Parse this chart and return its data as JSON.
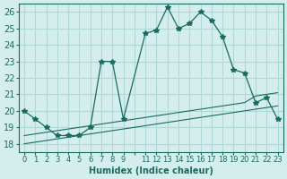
{
  "xlabel": "Humidex (Indice chaleur)",
  "bg_color": "#d4eeed",
  "grid_color": "#b0d8d5",
  "line_color": "#1a6b5e",
  "xlim": [
    -0.5,
    23.5
  ],
  "ylim": [
    17.5,
    26.5
  ],
  "yticks": [
    18,
    19,
    20,
    21,
    22,
    23,
    24,
    25,
    26
  ],
  "xtick_labels": [
    "0",
    "1",
    "2",
    "3",
    "4",
    "5",
    "6",
    "7",
    "8",
    "9",
    "",
    "11",
    "12",
    "13",
    "14",
    "15",
    "16",
    "17",
    "18",
    "19",
    "20",
    "21",
    "22",
    "23"
  ],
  "main_x": [
    0,
    1,
    2,
    3,
    4,
    5,
    6,
    7,
    8,
    9,
    11,
    12,
    13,
    14,
    15,
    16,
    17,
    18,
    19,
    20,
    21,
    22,
    23
  ],
  "main_y": [
    20.0,
    19.5,
    19.0,
    18.5,
    18.5,
    18.5,
    19.0,
    23.0,
    23.0,
    19.5,
    24.7,
    24.9,
    26.3,
    25.0,
    25.3,
    26.0,
    25.5,
    24.5,
    22.5,
    22.3,
    20.5,
    20.8,
    19.5
  ],
  "line1_x": [
    0,
    1,
    2,
    3,
    4,
    5,
    6,
    7,
    8,
    9,
    11,
    12,
    13,
    14,
    15,
    16,
    17,
    18,
    19,
    20,
    21,
    22,
    23
  ],
  "line1_y": [
    18.0,
    18.1,
    18.2,
    18.3,
    18.4,
    18.5,
    18.6,
    18.7,
    18.8,
    18.9,
    19.1,
    19.2,
    19.3,
    19.4,
    19.5,
    19.6,
    19.7,
    19.8,
    19.9,
    20.0,
    20.1,
    20.2,
    20.3
  ],
  "line2_x": [
    0,
    1,
    2,
    3,
    4,
    5,
    6,
    7,
    8,
    9,
    11,
    12,
    13,
    14,
    15,
    16,
    17,
    18,
    19,
    20,
    21,
    22,
    23
  ],
  "line2_y": [
    18.5,
    18.6,
    18.7,
    18.8,
    18.9,
    19.0,
    19.1,
    19.2,
    19.3,
    19.4,
    19.6,
    19.7,
    19.8,
    19.9,
    20.0,
    20.1,
    20.2,
    20.3,
    20.4,
    20.5,
    20.9,
    21.0,
    21.1
  ]
}
